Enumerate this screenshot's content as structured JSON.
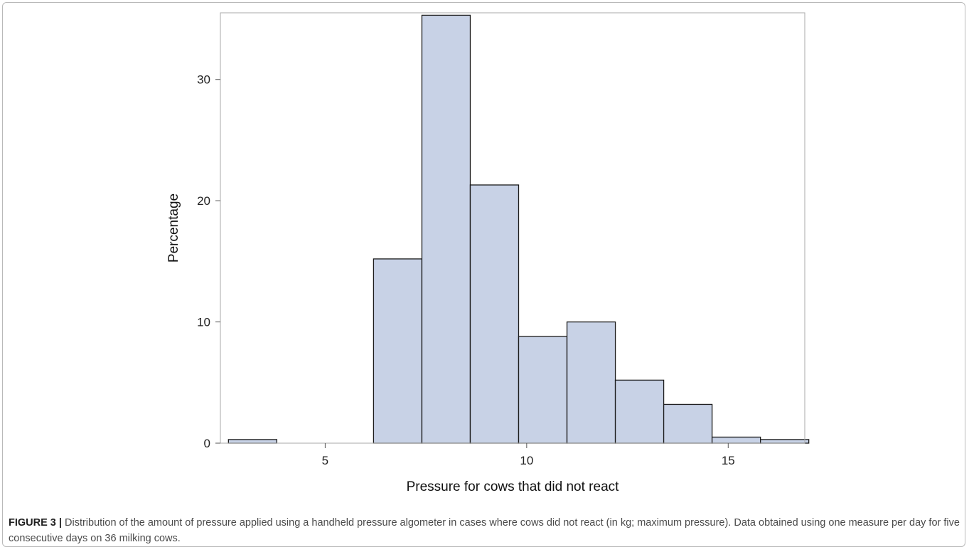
{
  "figure": {
    "label": "FIGURE 3 |",
    "caption": "Distribution of the amount of pressure applied using a handheld pressure algometer in cases where cows did not react (in kg; maximum pressure). Data obtained using one measure per day for five consecutive days on 36 milking cows."
  },
  "chart_data": {
    "type": "bar",
    "subtype": "histogram",
    "xlabel": "Pressure for cows that did not react",
    "ylabel": "Percentage",
    "xlim": [
      2.4,
      16.9
    ],
    "ylim": [
      0,
      35.5
    ],
    "xticks": [
      5,
      10,
      15
    ],
    "yticks": [
      0,
      10,
      20,
      30
    ],
    "bins": [
      {
        "start": 2.6,
        "end": 3.8,
        "value": 0.3
      },
      {
        "start": 3.8,
        "end": 5.0,
        "value": 0
      },
      {
        "start": 5.0,
        "end": 6.2,
        "value": 0
      },
      {
        "start": 6.2,
        "end": 7.4,
        "value": 15.2
      },
      {
        "start": 7.4,
        "end": 8.6,
        "value": 35.3
      },
      {
        "start": 8.6,
        "end": 9.8,
        "value": 21.3
      },
      {
        "start": 9.8,
        "end": 11.0,
        "value": 8.8
      },
      {
        "start": 11.0,
        "end": 12.2,
        "value": 10.0
      },
      {
        "start": 12.2,
        "end": 13.4,
        "value": 5.2
      },
      {
        "start": 13.4,
        "end": 14.6,
        "value": 3.2
      },
      {
        "start": 14.6,
        "end": 15.8,
        "value": 0.5
      },
      {
        "start": 15.8,
        "end": 17.0,
        "value": 0.3
      }
    ],
    "bar_color": "#c8d2e6",
    "bar_edge_color": "#1a1a1a",
    "grid": false,
    "legend": "none"
  }
}
